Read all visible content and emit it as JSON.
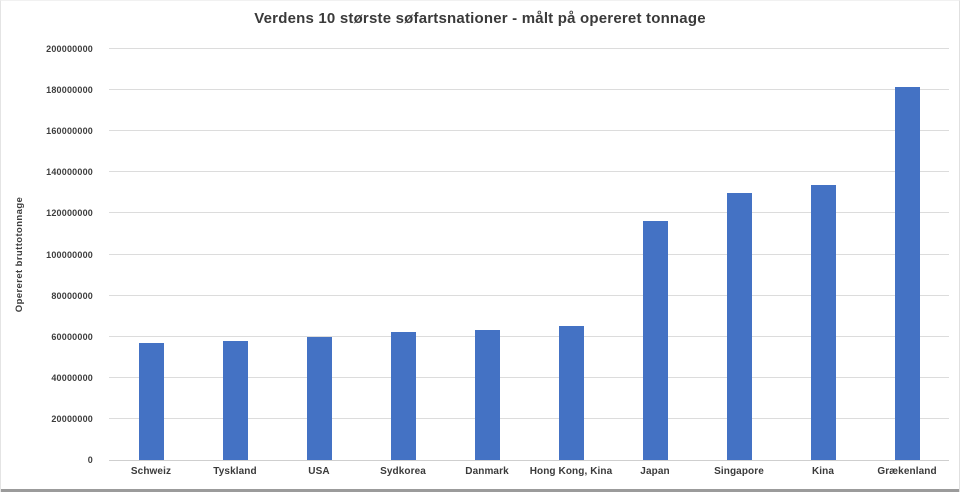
{
  "chart_data": {
    "type": "bar",
    "title": "Verdens 10 største søfartsnationer - målt på opereret tonnage",
    "xlabel": "",
    "ylabel": "Opereret bruttotonnage",
    "categories": [
      "Schweiz",
      "Tyskland",
      "USA",
      "Sydkorea",
      "Danmark",
      "Hong Kong, Kina",
      "Japan",
      "Singapore",
      "Kina",
      "Grækenland"
    ],
    "values": [
      57000000,
      58000000,
      60000000,
      62500000,
      63500000,
      65000000,
      116500000,
      130000000,
      134000000,
      181500000
    ],
    "ylim": [
      0,
      200000000
    ],
    "ytick_step": 20000000,
    "ytick_labels": [
      "0",
      "20000000",
      "40000000",
      "60000000",
      "80000000",
      "100000000",
      "120000000",
      "140000000",
      "160000000",
      "180000000",
      "200000000"
    ],
    "grid": true,
    "legend": "none",
    "colors": {
      "bar": "#4472C4",
      "gridline": "#DCDCDC",
      "axis_line": "#CFCFCF",
      "text": "#3D3D3D"
    }
  }
}
